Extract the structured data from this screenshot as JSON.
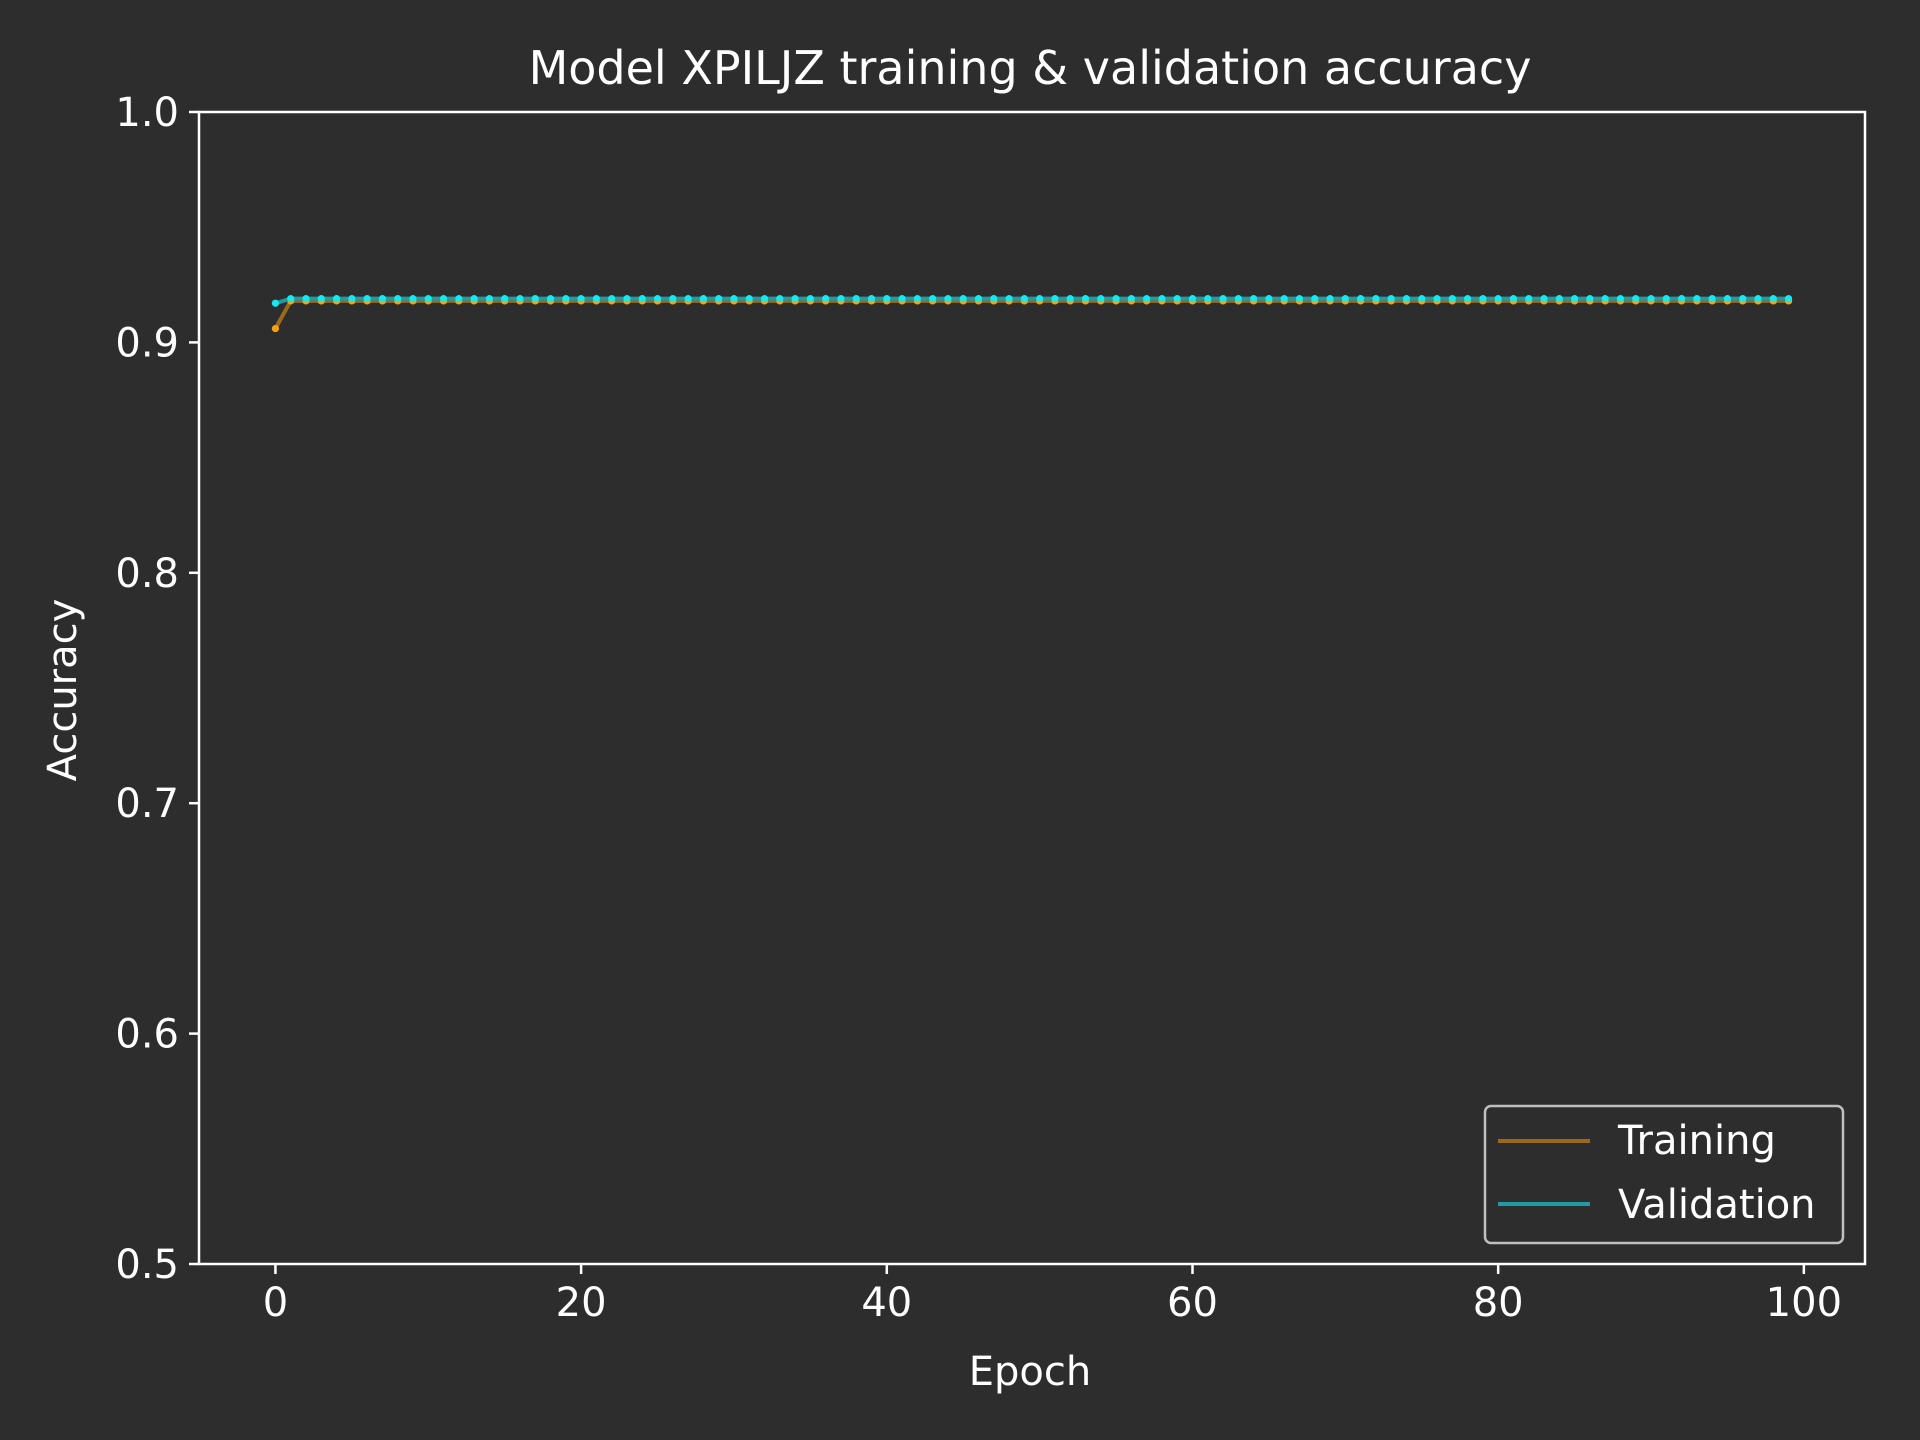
{
  "chart_data": {
    "type": "line",
    "title": "Model XPILJZ training & validation accuracy",
    "xlabel": "Epoch",
    "ylabel": "Accuracy",
    "xlim": [
      -5,
      104
    ],
    "ylim": [
      0.5,
      1.0
    ],
    "x_ticks": [
      0,
      20,
      40,
      60,
      80,
      100
    ],
    "x_tick_labels": [
      "0",
      "20",
      "40",
      "60",
      "80",
      "100"
    ],
    "y_ticks": [
      0.5,
      0.6,
      0.7,
      0.8,
      0.9,
      1.0
    ],
    "y_tick_labels": [
      "0.5",
      "0.6",
      "0.7",
      "0.8",
      "0.9",
      "1.0"
    ],
    "grid": false,
    "legend_position": "lower-right",
    "x": [
      0,
      1,
      2,
      3,
      4,
      5,
      6,
      7,
      8,
      9,
      10,
      11,
      12,
      13,
      14,
      15,
      16,
      17,
      18,
      19,
      20,
      21,
      22,
      23,
      24,
      25,
      26,
      27,
      28,
      29,
      30,
      31,
      32,
      33,
      34,
      35,
      36,
      37,
      38,
      39,
      40,
      41,
      42,
      43,
      44,
      45,
      46,
      47,
      48,
      49,
      50,
      51,
      52,
      53,
      54,
      55,
      56,
      57,
      58,
      59,
      60,
      61,
      62,
      63,
      64,
      65,
      66,
      67,
      68,
      69,
      70,
      71,
      72,
      73,
      74,
      75,
      76,
      77,
      78,
      79,
      80,
      81,
      82,
      83,
      84,
      85,
      86,
      87,
      88,
      89,
      90,
      91,
      92,
      93,
      94,
      95,
      96,
      97,
      98,
      99
    ],
    "series": [
      {
        "name": "Training",
        "color": "#ff9f0a",
        "line_color": "#9a6a1c",
        "values": [
          0.906,
          0.918,
          0.918,
          0.918,
          0.918,
          0.918,
          0.918,
          0.918,
          0.918,
          0.918,
          0.918,
          0.918,
          0.918,
          0.918,
          0.918,
          0.918,
          0.918,
          0.918,
          0.918,
          0.918,
          0.918,
          0.918,
          0.918,
          0.918,
          0.918,
          0.918,
          0.918,
          0.918,
          0.918,
          0.918,
          0.918,
          0.918,
          0.918,
          0.918,
          0.918,
          0.918,
          0.918,
          0.918,
          0.918,
          0.918,
          0.918,
          0.918,
          0.918,
          0.918,
          0.918,
          0.918,
          0.918,
          0.918,
          0.918,
          0.918,
          0.918,
          0.918,
          0.918,
          0.918,
          0.918,
          0.918,
          0.918,
          0.918,
          0.918,
          0.918,
          0.918,
          0.918,
          0.918,
          0.918,
          0.918,
          0.918,
          0.918,
          0.918,
          0.918,
          0.918,
          0.918,
          0.918,
          0.918,
          0.918,
          0.918,
          0.918,
          0.918,
          0.918,
          0.918,
          0.918,
          0.918,
          0.918,
          0.918,
          0.918,
          0.918,
          0.918,
          0.918,
          0.918,
          0.918,
          0.918,
          0.918,
          0.918,
          0.918,
          0.918,
          0.918,
          0.918,
          0.918,
          0.918,
          0.918,
          0.918
        ]
      },
      {
        "name": "Validation",
        "color": "#16e8f0",
        "line_color": "#1f9ba1",
        "values": [
          0.917,
          0.919,
          0.919,
          0.919,
          0.919,
          0.919,
          0.919,
          0.919,
          0.919,
          0.919,
          0.919,
          0.919,
          0.919,
          0.919,
          0.919,
          0.919,
          0.919,
          0.919,
          0.919,
          0.919,
          0.919,
          0.919,
          0.919,
          0.919,
          0.919,
          0.919,
          0.919,
          0.919,
          0.919,
          0.919,
          0.919,
          0.919,
          0.919,
          0.919,
          0.919,
          0.919,
          0.919,
          0.919,
          0.919,
          0.919,
          0.919,
          0.919,
          0.919,
          0.919,
          0.919,
          0.919,
          0.919,
          0.919,
          0.919,
          0.919,
          0.919,
          0.919,
          0.919,
          0.919,
          0.919,
          0.919,
          0.919,
          0.919,
          0.919,
          0.919,
          0.919,
          0.919,
          0.919,
          0.919,
          0.919,
          0.919,
          0.919,
          0.919,
          0.919,
          0.919,
          0.919,
          0.919,
          0.919,
          0.919,
          0.919,
          0.919,
          0.919,
          0.919,
          0.919,
          0.919,
          0.919,
          0.919,
          0.919,
          0.919,
          0.919,
          0.919,
          0.919,
          0.919,
          0.919,
          0.919,
          0.919,
          0.919,
          0.919,
          0.919,
          0.919,
          0.919,
          0.919,
          0.919,
          0.919,
          0.919
        ]
      }
    ],
    "colors": {
      "background": "#2d2d2d",
      "axes": "#ffffff",
      "text": "#ffffff",
      "legend_border": "#bfbfbf"
    }
  }
}
